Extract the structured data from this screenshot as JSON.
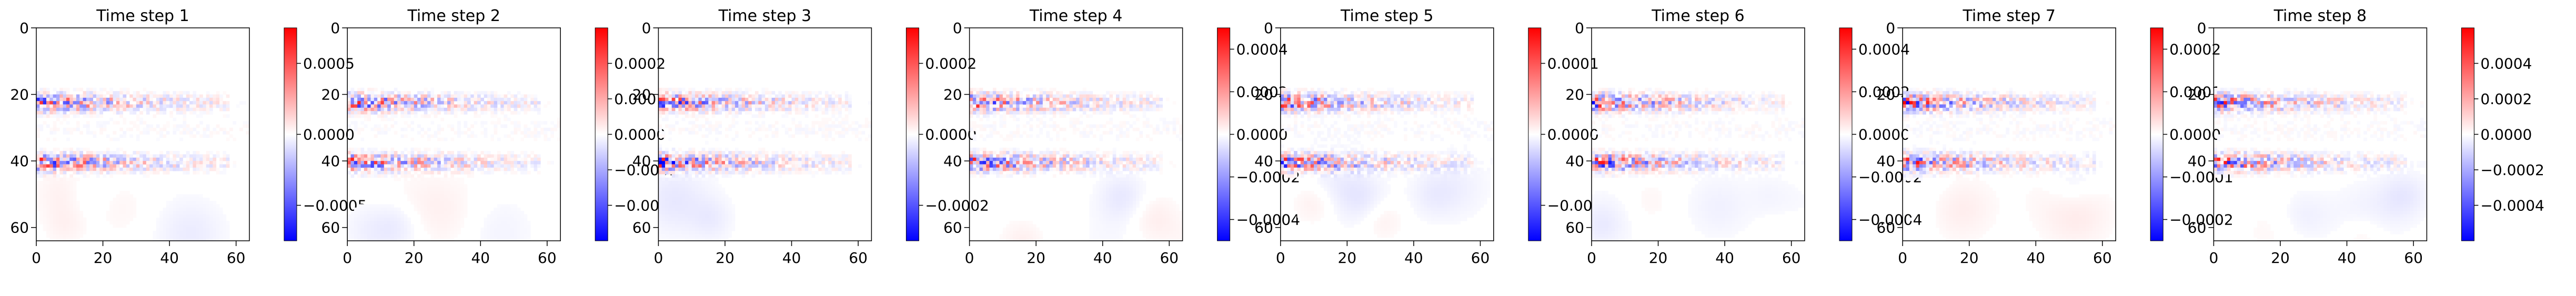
{
  "figure": {
    "background": "#ffffff",
    "colormap": "bwr"
  },
  "chart_data": [
    {
      "type": "heatmap",
      "title": "Time step 1",
      "xlim": [
        0,
        64
      ],
      "ylim": [
        64,
        0
      ],
      "x_ticks": [
        "0",
        "20",
        "40",
        "60"
      ],
      "y_ticks": [
        "0",
        "20",
        "40",
        "60"
      ],
      "colorbar_range": [
        -0.00075,
        0.00075
      ],
      "colorbar_ticks": [
        {
          "value": 0.0005,
          "label": "0.0005"
        },
        {
          "value": 0.0,
          "label": "0.0000"
        },
        {
          "value": -0.0005,
          "label": "−0.0005"
        }
      ],
      "seed": 11
    },
    {
      "type": "heatmap",
      "title": "Time step 2",
      "xlim": [
        0,
        64
      ],
      "ylim": [
        64,
        0
      ],
      "x_ticks": [
        "0",
        "20",
        "40",
        "60"
      ],
      "y_ticks": [
        "0",
        "20",
        "40",
        "60"
      ],
      "colorbar_range": [
        -0.0003,
        0.0003
      ],
      "colorbar_ticks": [
        {
          "value": 0.0002,
          "label": "0.0002"
        },
        {
          "value": 0.0001,
          "label": "0.0001"
        },
        {
          "value": 0.0,
          "label": "0.0000"
        },
        {
          "value": -0.0001,
          "label": "−0.0001"
        },
        {
          "value": -0.0002,
          "label": "−0.0002"
        }
      ],
      "seed": 23
    },
    {
      "type": "heatmap",
      "title": "Time step 3",
      "xlim": [
        0,
        64
      ],
      "ylim": [
        64,
        0
      ],
      "x_ticks": [
        "0",
        "20",
        "40",
        "60"
      ],
      "y_ticks": [
        "0",
        "20",
        "40",
        "60"
      ],
      "colorbar_range": [
        -0.0003,
        0.0003
      ],
      "colorbar_ticks": [
        {
          "value": 0.0002,
          "label": "0.0002"
        },
        {
          "value": 0.0,
          "label": "0.0000"
        },
        {
          "value": -0.0002,
          "label": "−0.0002"
        }
      ],
      "seed": 37
    },
    {
      "type": "heatmap",
      "title": "Time step 4",
      "xlim": [
        0,
        64
      ],
      "ylim": [
        64,
        0
      ],
      "x_ticks": [
        "0",
        "20",
        "40",
        "60"
      ],
      "y_ticks": [
        "0",
        "20",
        "40",
        "60"
      ],
      "colorbar_range": [
        -0.0005,
        0.0005
      ],
      "colorbar_ticks": [
        {
          "value": 0.0004,
          "label": "0.0004"
        },
        {
          "value": 0.0002,
          "label": "0.0002"
        },
        {
          "value": 0.0,
          "label": "0.0000"
        },
        {
          "value": -0.0002,
          "label": "−0.0002"
        },
        {
          "value": -0.0004,
          "label": "−0.0004"
        }
      ],
      "seed": 41
    },
    {
      "type": "heatmap",
      "title": "Time step 5",
      "xlim": [
        0,
        64
      ],
      "ylim": [
        64,
        0
      ],
      "x_ticks": [
        "0",
        "20",
        "40",
        "60"
      ],
      "y_ticks": [
        "0",
        "20",
        "40",
        "60"
      ],
      "colorbar_range": [
        -0.00015,
        0.00015
      ],
      "colorbar_ticks": [
        {
          "value": 0.0001,
          "label": "0.0001"
        },
        {
          "value": 0.0,
          "label": "0.0000"
        },
        {
          "value": -0.0001,
          "label": "−0.0001"
        }
      ],
      "seed": 53
    },
    {
      "type": "heatmap",
      "title": "Time step 6",
      "xlim": [
        0,
        64
      ],
      "ylim": [
        64,
        0
      ],
      "x_ticks": [
        "0",
        "20",
        "40",
        "60"
      ],
      "y_ticks": [
        "0",
        "20",
        "40",
        "60"
      ],
      "colorbar_range": [
        -0.0005,
        0.0005
      ],
      "colorbar_ticks": [
        {
          "value": 0.0004,
          "label": "0.0004"
        },
        {
          "value": 0.0002,
          "label": "0.0002"
        },
        {
          "value": 0.0,
          "label": "0.0000"
        },
        {
          "value": -0.0002,
          "label": "−0.0002"
        },
        {
          "value": -0.0004,
          "label": "−0.0004"
        }
      ],
      "seed": 67
    },
    {
      "type": "heatmap",
      "title": "Time step 7",
      "xlim": [
        0,
        64
      ],
      "ylim": [
        64,
        0
      ],
      "x_ticks": [
        "0",
        "20",
        "40",
        "60"
      ],
      "y_ticks": [
        "0",
        "20",
        "40",
        "60"
      ],
      "colorbar_range": [
        -0.00025,
        0.00025
      ],
      "colorbar_ticks": [
        {
          "value": 0.0002,
          "label": "0.0002"
        },
        {
          "value": 0.0001,
          "label": "0.0001"
        },
        {
          "value": 0.0,
          "label": "0.0000"
        },
        {
          "value": -0.0001,
          "label": "−0.0001"
        },
        {
          "value": -0.0002,
          "label": "−0.0002"
        }
      ],
      "seed": 79
    },
    {
      "type": "heatmap",
      "title": "Time step 8",
      "xlim": [
        0,
        64
      ],
      "ylim": [
        64,
        0
      ],
      "x_ticks": [
        "0",
        "20",
        "40",
        "60"
      ],
      "y_ticks": [
        "0",
        "20",
        "40",
        "60"
      ],
      "colorbar_range": [
        -0.0006,
        0.0006
      ],
      "colorbar_ticks": [
        {
          "value": 0.0004,
          "label": "0.0004"
        },
        {
          "value": 0.0002,
          "label": "0.0002"
        },
        {
          "value": 0.0,
          "label": "0.0000"
        },
        {
          "value": -0.0002,
          "label": "−0.0002"
        },
        {
          "value": -0.0004,
          "label": "−0.0004"
        }
      ],
      "seed": 83
    }
  ]
}
